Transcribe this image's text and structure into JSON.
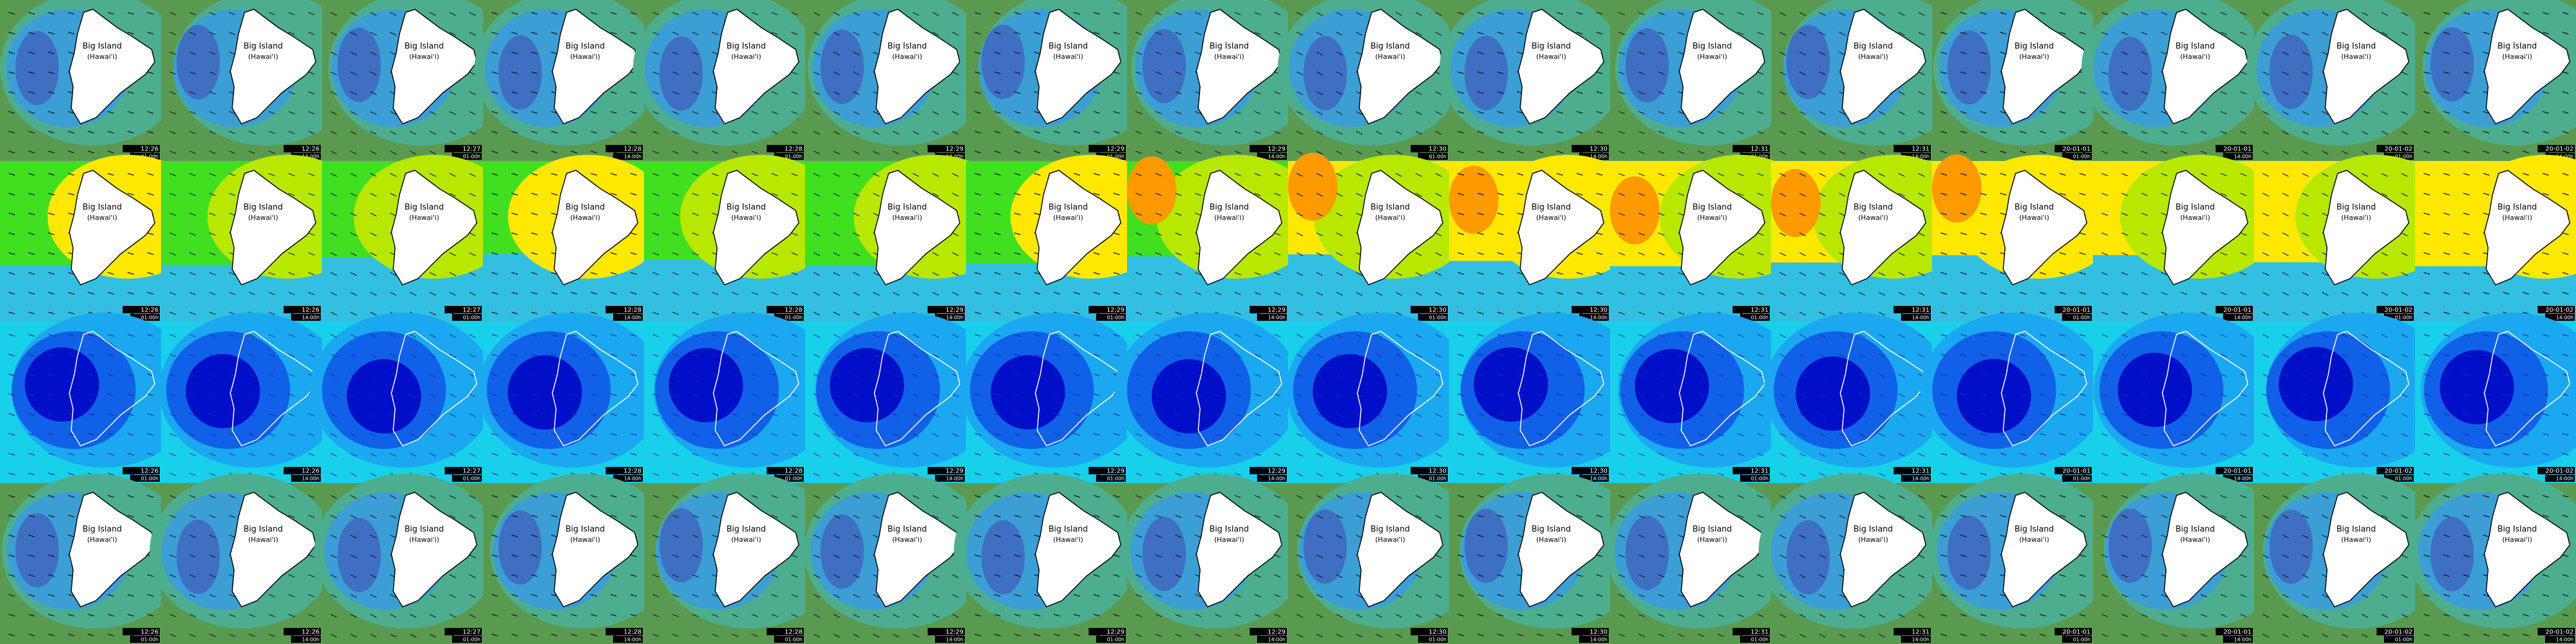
{
  "island": {
    "name": "Big Island",
    "subtitle": "(Hawai'i)"
  },
  "rows": [
    {
      "tiles": [
        {
          "time": "12:26",
          "date": "01-00h"
        },
        {
          "time": "12:26",
          "date": "14-00h"
        },
        {
          "time": "12:27",
          "date": "01-00h"
        },
        {
          "time": "12:28",
          "date": "14-00h"
        },
        {
          "time": "12:28",
          "date": "01-00h"
        },
        {
          "time": "12:29",
          "date": "14-00h"
        },
        {
          "time": "12:29",
          "date": "01-00h"
        },
        {
          "time": "12:29",
          "date": "14-00h"
        },
        {
          "time": "12:30",
          "date": "01-00h"
        },
        {
          "time": "12:30",
          "date": "14-00h"
        },
        {
          "time": "12:31",
          "date": "01-00h"
        },
        {
          "time": "12:31",
          "date": "14-00h"
        },
        {
          "time": "20-01-01",
          "date": "01-00h"
        },
        {
          "time": "20-01-01",
          "date": "14-00h"
        },
        {
          "time": "20-01-02",
          "date": "01-00h"
        },
        {
          "time": "20-01-02",
          "date": "14-00h"
        }
      ]
    },
    {
      "tiles": [
        {
          "time": "12:26",
          "date": "01-00h"
        },
        {
          "time": "12:26",
          "date": "14-00h"
        },
        {
          "time": "12:27",
          "date": "01-00h"
        },
        {
          "time": "12:28",
          "date": "14-00h"
        },
        {
          "time": "12:28",
          "date": "01-00h"
        },
        {
          "time": "12:29",
          "date": "14-00h"
        },
        {
          "time": "12:29",
          "date": "01-00h"
        },
        {
          "time": "12:29",
          "date": "14-00h"
        },
        {
          "time": "12:30",
          "date": "01-00h"
        },
        {
          "time": "12:30",
          "date": "14-00h"
        },
        {
          "time": "12:31",
          "date": "01-00h"
        },
        {
          "time": "12:31",
          "date": "14-00h"
        },
        {
          "time": "20-01-01",
          "date": "01-00h"
        },
        {
          "time": "20-01-01",
          "date": "14-00h"
        },
        {
          "time": "20-01-02",
          "date": "01-00h"
        },
        {
          "time": "20-01-02",
          "date": "14-00h"
        }
      ]
    },
    {
      "tiles": [
        {
          "time": "12:26",
          "date": "01-00h"
        },
        {
          "time": "12:26",
          "date": "14-00h"
        },
        {
          "time": "12:27",
          "date": "01-00h"
        },
        {
          "time": "12:28",
          "date": "14-00h"
        },
        {
          "time": "12:28",
          "date": "01-00h"
        },
        {
          "time": "12:29",
          "date": "14-00h"
        },
        {
          "time": "12:29",
          "date": "01-00h"
        },
        {
          "time": "12:29",
          "date": "14-00h"
        },
        {
          "time": "12:30",
          "date": "01-00h"
        },
        {
          "time": "12:30",
          "date": "14-00h"
        },
        {
          "time": "12:31",
          "date": "01-00h"
        },
        {
          "time": "12:31",
          "date": "14-00h"
        },
        {
          "time": "20-01-01",
          "date": "01-00h"
        },
        {
          "time": "20-01-01",
          "date": "14-00h"
        },
        {
          "time": "20-01-02",
          "date": "01-00h"
        },
        {
          "time": "20-01-02",
          "date": "14-00h"
        }
      ]
    },
    {
      "tiles": [
        {
          "time": "12:26",
          "date": "01-00h"
        },
        {
          "time": "12:26",
          "date": "14-00h"
        },
        {
          "time": "12:27",
          "date": "01-00h"
        },
        {
          "time": "12:28",
          "date": "14-00h"
        },
        {
          "time": "12:28",
          "date": "01-00h"
        },
        {
          "time": "12:29",
          "date": "14-00h"
        },
        {
          "time": "12:29",
          "date": "01-00h"
        },
        {
          "time": "12:29",
          "date": "14-00h"
        },
        {
          "time": "12:30",
          "date": "01-00h"
        },
        {
          "time": "12:30",
          "date": "14-00h"
        },
        {
          "time": "12:31",
          "date": "01-00h"
        },
        {
          "time": "12:31",
          "date": "14-00h"
        },
        {
          "time": "20-01-01",
          "date": "01-00h"
        },
        {
          "time": "20-01-01",
          "date": "14-00h"
        },
        {
          "time": "20-01-02",
          "date": "01-00h"
        },
        {
          "time": "20-01-02",
          "date": "14-00h"
        }
      ]
    }
  ]
}
